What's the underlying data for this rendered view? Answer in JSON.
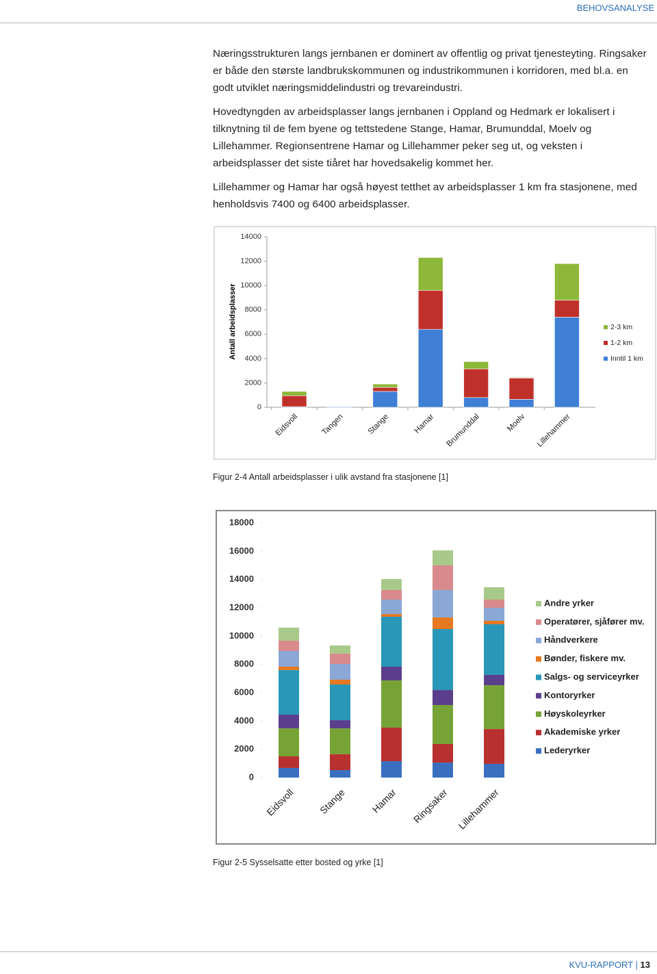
{
  "header": {
    "title": "BEHOVSANALYSE"
  },
  "paragraphs": [
    "Næringsstrukturen langs jernbanen er dominert av offentlig og privat tjenesteyting. Ringsaker er både den største landbrukskommunen og industrikommunen i korridoren, med bl.a. en godt utviklet næringsmiddelindustri og trevareindustri.",
    "Hovedtyngden av arbeidsplasser langs jernbanen i Oppland og Hedmark er lokalisert i tilknytning til de fem byene og tettstedene Stange, Hamar, Brumunddal, Moelv og Lillehammer. Regionsentrene Hamar og Lillehammer peker seg ut, og veksten i arbeidsplasser det siste tiåret har hovedsakelig kommet her.",
    "Lillehammer og Hamar har også høyest tetthet av arbeidsplasser 1 km fra stasjonene, med henholdsvis 7400 og 6400 arbeidsplasser."
  ],
  "chart_data": [
    {
      "type": "stacked-bar",
      "y_label": "Antall arbeidsplasser",
      "categories": [
        "Eidsvoll",
        "Tangen",
        "Stange",
        "Hamar",
        "Brumunddal",
        "Moelv",
        "Lillehammer"
      ],
      "series": [
        {
          "name": "Inntil 1 km",
          "color": "#3f7fd6",
          "values": [
            50,
            50,
            1300,
            6400,
            800,
            650,
            7400
          ]
        },
        {
          "name": "1-2 km",
          "color": "#c0302a",
          "values": [
            900,
            0,
            330,
            3200,
            2350,
            1750,
            1400
          ]
        },
        {
          "name": "2-3 km",
          "color": "#8db83a",
          "values": [
            350,
            0,
            280,
            2700,
            600,
            50,
            3000
          ]
        }
      ],
      "ylim": [
        0,
        14000
      ],
      "yticks": [
        0,
        2000,
        4000,
        6000,
        8000,
        10000,
        12000,
        14000
      ],
      "legend": "right",
      "caption": "Figur 2-4 Antall arbeidsplasser i ulik avstand fra stasjonene [1]"
    },
    {
      "type": "stacked-bar",
      "categories": [
        "Eidsvoll",
        "Stange",
        "Hamar",
        "Ringsaker",
        "Lillehammer"
      ],
      "series": [
        {
          "name": "Lederyrker",
          "color": "#3a6fc0",
          "values": [
            680,
            530,
            1160,
            1060,
            970
          ]
        },
        {
          "name": "Akademiske yrker",
          "color": "#b8302f",
          "values": [
            820,
            1120,
            2370,
            1310,
            2460
          ]
        },
        {
          "name": "Høyskoleyrker",
          "color": "#77a336",
          "values": [
            1980,
            1830,
            3340,
            2760,
            3100
          ]
        },
        {
          "name": "Kontoryrker",
          "color": "#5b3f8c",
          "values": [
            970,
            580,
            970,
            1060,
            730
          ]
        },
        {
          "name": "Salgs- og serviceyrker",
          "color": "#2a97b8",
          "values": [
            3150,
            2520,
            3530,
            4310,
            3580
          ]
        },
        {
          "name": "Bønder, fiskere mv.",
          "color": "#e6791f",
          "values": [
            240,
            340,
            190,
            820,
            240
          ]
        },
        {
          "name": "Håndverkere",
          "color": "#8aa7d6",
          "values": [
            1110,
            1110,
            1020,
            1940,
            920
          ]
        },
        {
          "name": "Operatører, sjåfører mv.",
          "color": "#d98a8c",
          "values": [
            730,
            730,
            680,
            1740,
            580
          ]
        },
        {
          "name": "Andre yrker",
          "color": "#a9c98a",
          "values": [
            920,
            580,
            770,
            1060,
            870
          ]
        }
      ],
      "ylim": [
        0,
        18000
      ],
      "yticks": [
        0,
        2000,
        4000,
        6000,
        8000,
        10000,
        12000,
        14000,
        16000,
        18000
      ],
      "legend": "right",
      "caption": "Figur 2-5 Sysselsatte etter bosted og yrke [1]"
    }
  ],
  "footer": {
    "label": "KVU-RAPPORT",
    "page": 13
  }
}
